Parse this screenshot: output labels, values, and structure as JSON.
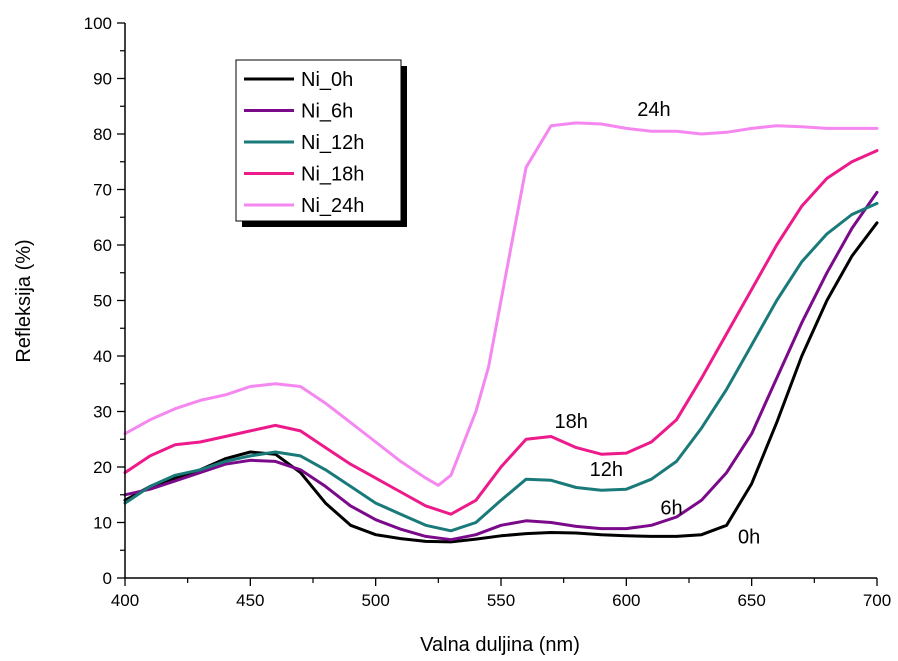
{
  "chart_data": {
    "type": "line",
    "xlabel": "Valna duljina (nm)",
    "ylabel": "Refleksija (%)",
    "xlim": [
      400,
      700
    ],
    "ylim": [
      0,
      100
    ],
    "xticks": [
      400,
      450,
      500,
      550,
      600,
      650,
      700
    ],
    "yticks": [
      0,
      10,
      20,
      30,
      40,
      50,
      60,
      70,
      80,
      90,
      100
    ],
    "grid": false,
    "legend_position": "top-left",
    "series": [
      {
        "name": "Ni_0h",
        "color": "#000000",
        "x": [
          400,
          410,
          420,
          430,
          440,
          450,
          460,
          470,
          480,
          490,
          500,
          510,
          520,
          530,
          540,
          550,
          560,
          570,
          580,
          590,
          600,
          610,
          620,
          630,
          640,
          650,
          660,
          670,
          680,
          690,
          700
        ],
        "y": [
          14,
          16.5,
          18,
          19.5,
          21.5,
          22.7,
          22.3,
          19,
          13.5,
          9.5,
          7.8,
          7.1,
          6.6,
          6.5,
          7,
          7.6,
          8,
          8.2,
          8.1,
          7.8,
          7.6,
          7.5,
          7.5,
          7.8,
          9.5,
          17,
          28,
          40,
          50,
          58,
          64
        ]
      },
      {
        "name": "Ni_6h",
        "color": "#7b0a8a",
        "x": [
          400,
          410,
          420,
          430,
          440,
          450,
          460,
          470,
          480,
          490,
          500,
          510,
          520,
          530,
          540,
          550,
          560,
          570,
          580,
          590,
          600,
          610,
          620,
          630,
          640,
          650,
          660,
          670,
          680,
          690,
          700
        ],
        "y": [
          15,
          16,
          17.5,
          19,
          20.5,
          21.2,
          21,
          19.5,
          16.5,
          13,
          10.5,
          8.8,
          7.5,
          6.9,
          7.8,
          9.5,
          10.3,
          10,
          9.3,
          8.9,
          8.9,
          9.5,
          11,
          14,
          19,
          26,
          36,
          46,
          55,
          63,
          69.5
        ]
      },
      {
        "name": "Ni_12h",
        "color": "#1a7a7a",
        "x": [
          400,
          410,
          420,
          430,
          440,
          450,
          460,
          470,
          480,
          490,
          500,
          510,
          520,
          530,
          540,
          550,
          560,
          570,
          580,
          590,
          600,
          610,
          620,
          630,
          640,
          650,
          660,
          670,
          680,
          690,
          700
        ],
        "y": [
          13.5,
          16.5,
          18.5,
          19.5,
          21,
          22,
          22.7,
          22,
          19.5,
          16.5,
          13.5,
          11.5,
          9.5,
          8.5,
          10,
          14,
          17.8,
          17.6,
          16.3,
          15.8,
          16,
          17.8,
          21,
          27,
          34,
          42,
          50,
          57,
          62,
          65.5,
          67.5
        ]
      },
      {
        "name": "Ni_18h",
        "color": "#ec1a8a",
        "x": [
          400,
          410,
          420,
          430,
          440,
          450,
          460,
          470,
          480,
          490,
          500,
          510,
          520,
          530,
          540,
          550,
          560,
          570,
          580,
          590,
          600,
          610,
          620,
          630,
          640,
          650,
          660,
          670,
          680,
          690,
          700
        ],
        "y": [
          19,
          22,
          24,
          24.5,
          25.5,
          26.5,
          27.5,
          26.5,
          23.5,
          20.5,
          18,
          15.5,
          13,
          11.5,
          14,
          20,
          25,
          25.5,
          23.5,
          22.3,
          22.5,
          24.5,
          28.5,
          36,
          44,
          52,
          60,
          67,
          72,
          75,
          77
        ]
      },
      {
        "name": "Ni_24h",
        "color": "#f587f0",
        "x": [
          400,
          410,
          420,
          430,
          440,
          450,
          460,
          470,
          480,
          490,
          500,
          510,
          520,
          525,
          530,
          540,
          545,
          550,
          555,
          560,
          570,
          580,
          590,
          600,
          610,
          620,
          630,
          640,
          650,
          660,
          670,
          680,
          690,
          700
        ],
        "y": [
          26,
          28.5,
          30.5,
          32,
          33,
          34.5,
          35,
          34.5,
          31.5,
          28,
          24.5,
          21,
          18,
          16.7,
          18.5,
          30,
          38,
          50,
          62,
          74,
          81.5,
          82,
          81.8,
          81,
          80.5,
          80.5,
          80,
          80.3,
          81,
          81.5,
          81.3,
          81,
          81,
          81
        ]
      }
    ],
    "annotations": [
      {
        "text": "24h",
        "x": 611,
        "y": 84.5
      },
      {
        "text": "18h",
        "x": 578,
        "y": 28.3
      },
      {
        "text": "12h",
        "x": 592,
        "y": 19.6
      },
      {
        "text": "6h",
        "x": 618,
        "y": 12.7
      },
      {
        "text": "0h",
        "x": 649,
        "y": 7.5
      }
    ]
  }
}
